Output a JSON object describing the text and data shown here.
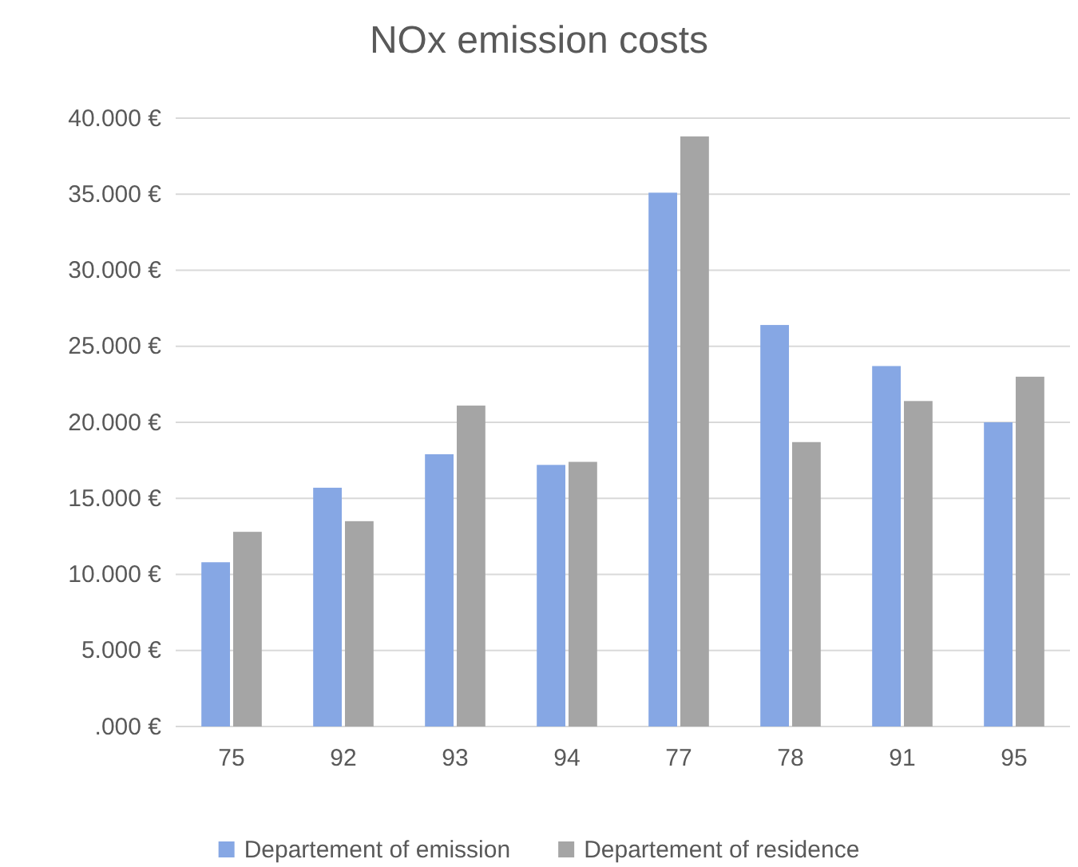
{
  "chart_data": {
    "type": "bar",
    "title": "NOx emission costs",
    "categories": [
      "75",
      "92",
      "93",
      "94",
      "77",
      "78",
      "91",
      "95"
    ],
    "series": [
      {
        "name": "Departement of emission",
        "color": "#86a7e4",
        "values": [
          10800,
          15700,
          17900,
          17200,
          35100,
          26400,
          23700,
          20000
        ]
      },
      {
        "name": "Departement of residence",
        "color": "#a5a5a5",
        "values": [
          12800,
          13500,
          21100,
          17400,
          38800,
          18700,
          21400,
          23000
        ]
      }
    ],
    "ylim": [
      0,
      40000
    ],
    "yticks": [
      {
        "value": 0,
        "label": ".000 €"
      },
      {
        "value": 5000,
        "label": "5.000 €"
      },
      {
        "value": 10000,
        "label": "10.000 €"
      },
      {
        "value": 15000,
        "label": "15.000 €"
      },
      {
        "value": 20000,
        "label": "20.000 €"
      },
      {
        "value": 25000,
        "label": "25.000 €"
      },
      {
        "value": 30000,
        "label": "30.000 €"
      },
      {
        "value": 35000,
        "label": "35.000 €"
      },
      {
        "value": 40000,
        "label": "40.000 €"
      }
    ],
    "grid": "y",
    "legend": "bottom"
  }
}
